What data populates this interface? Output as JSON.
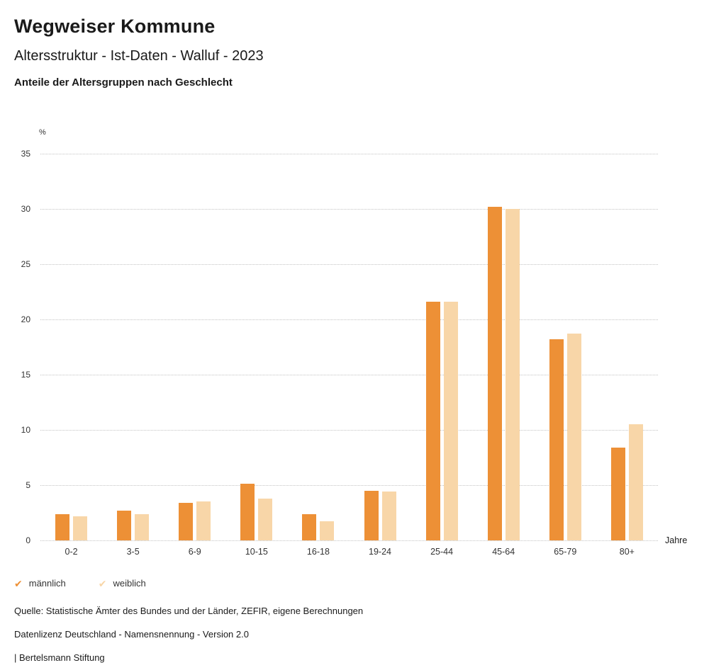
{
  "header": {
    "title": "Wegweiser Kommune",
    "subtitle": "Altersstruktur - Ist-Daten - Walluf - 2023",
    "chart_heading": "Anteile der Altersgruppen nach Geschlecht"
  },
  "chart_data": {
    "type": "bar",
    "title": "Anteile der Altersgruppen nach Geschlecht",
    "unit": "%",
    "xlabel": "Jahre",
    "ylabel": "%",
    "ylim": [
      0,
      35
    ],
    "ytick_step": 5,
    "grid": true,
    "legend_position": "bottom-left",
    "categories": [
      "0-2",
      "3-5",
      "6-9",
      "10-15",
      "16-18",
      "19-24",
      "25-44",
      "45-64",
      "65-79",
      "80+"
    ],
    "series": [
      {
        "name": "männlich",
        "color": "#ED9036",
        "values": [
          2.4,
          2.7,
          3.4,
          5.1,
          2.4,
          4.5,
          21.6,
          30.2,
          18.2,
          8.4
        ]
      },
      {
        "name": "weiblich",
        "color": "#F8D6A8",
        "values": [
          2.2,
          2.4,
          3.5,
          3.8,
          1.7,
          4.4,
          21.6,
          30.0,
          18.7,
          10.5
        ]
      }
    ]
  },
  "legend": {
    "check_glyph": "✔"
  },
  "footer": {
    "source": "Quelle: Statistische Ämter des Bundes und der Länder, ZEFIR, eigene Berechnungen",
    "license": "Datenlizenz Deutschland - Namensnennung - Version 2.0",
    "attribution": "| Bertelsmann Stiftung"
  }
}
